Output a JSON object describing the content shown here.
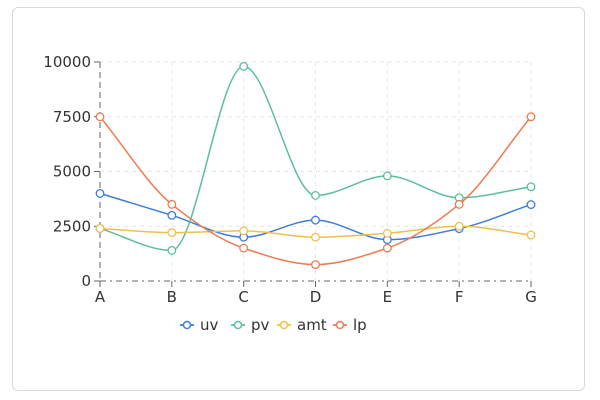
{
  "chart_data": {
    "type": "line",
    "categories": [
      "A",
      "B",
      "C",
      "D",
      "E",
      "F",
      "G"
    ],
    "ylim": [
      0,
      10000
    ],
    "yticks": [
      0,
      2500,
      5000,
      7500,
      10000
    ],
    "grid": true,
    "legend_position": "bottom",
    "series": [
      {
        "name": "uv",
        "color": "#3b7ddd",
        "values": [
          4000,
          3000,
          2000,
          2780,
          1890,
          2390,
          3490
        ]
      },
      {
        "name": "pv",
        "color": "#5dbf9a",
        "values": [
          2400,
          1398,
          9800,
          3908,
          4800,
          3800,
          4300
        ]
      },
      {
        "name": "amt",
        "color": "#f0c04a",
        "values": [
          2400,
          2210,
          2290,
          2000,
          2181,
          2500,
          2100
        ]
      },
      {
        "name": "lp",
        "color": "#ee7a52",
        "values": [
          7500,
          3500,
          1500,
          750,
          1500,
          3500,
          7500
        ]
      }
    ]
  }
}
